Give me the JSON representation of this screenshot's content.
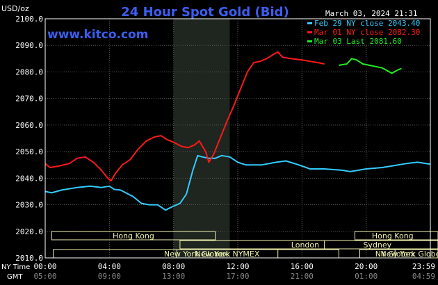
{
  "chart_data": {
    "type": "line",
    "title": "24 Hour Spot Gold (Bid)",
    "watermark": "www.kitco.com",
    "timestamp": "March 03, 2024 21:31",
    "ylabel": "USD/oz",
    "ylim": [
      2010,
      2100
    ],
    "yticks": [
      "2010.0",
      "2020.0",
      "2030.0",
      "2040.0",
      "2050.0",
      "2060.0",
      "2070.0",
      "2080.0",
      "2090.0",
      "2100.0"
    ],
    "xlim": [
      0,
      24
    ],
    "x_ticks": [
      0,
      4,
      8,
      12,
      16,
      20,
      23.983
    ],
    "ny_time_label": "NY Time",
    "gmt_label": "GMT",
    "ny_time_ticks": [
      "00:00",
      "04:00",
      "08:00",
      "12:00",
      "16:00",
      "20:00",
      "23:59"
    ],
    "gmt_ticks": [
      "05:00",
      "09:00",
      "13:00",
      "17:00",
      "21:00",
      "01:00",
      "04:59"
    ],
    "grid": true,
    "legend_position": "top-right",
    "colors": {
      "background": "#000000",
      "grid": "#5a5a5a",
      "axis": "#ffffff",
      "title": "#3c5ef0",
      "shade": "#1f251f",
      "session_box": "#f2f2b0"
    },
    "shaded_hours": [
      8,
      11.5
    ],
    "sessions": [
      {
        "label": "Hong Kong",
        "start": 0.4,
        "end": 10.6,
        "row": 0
      },
      {
        "label": "Hong Kong",
        "start": 19.3,
        "end": 24.6,
        "row": 0
      },
      {
        "label": "London",
        "start": 8.4,
        "end": 25.5,
        "row": 1
      },
      {
        "label": "Sydney",
        "start": 17.4,
        "end": 24.6,
        "row": 1
      },
      {
        "label": "New York Globex",
        "start": 0.5,
        "end": 18.3,
        "row": 2
      },
      {
        "label": "New York NYMEX",
        "start": 8.2,
        "end": 14.5,
        "row": 2
      },
      {
        "label": "NY Globex",
        "start": 19.6,
        "end": 24.5,
        "row": 2
      },
      {
        "label": "New York Globex",
        "start": 21.8,
        "end": 26.4,
        "row": 2
      }
    ],
    "series": [
      {
        "name": "Feb 29 NY close 2043.40",
        "color": "#33ccff",
        "points": [
          [
            0,
            2035
          ],
          [
            0.4,
            2034.5
          ],
          [
            1,
            2035.5
          ],
          [
            2,
            2036.5
          ],
          [
            2.8,
            2037
          ],
          [
            3.5,
            2036.5
          ],
          [
            4,
            2037
          ],
          [
            4.3,
            2035.8
          ],
          [
            4.7,
            2035.5
          ],
          [
            5.5,
            2033
          ],
          [
            6,
            2030.5
          ],
          [
            6.5,
            2030
          ],
          [
            7,
            2030
          ],
          [
            7.5,
            2028
          ],
          [
            8,
            2029.5
          ],
          [
            8.4,
            2030.5
          ],
          [
            8.8,
            2034
          ],
          [
            9.2,
            2043
          ],
          [
            9.5,
            2048.5
          ],
          [
            9.8,
            2048
          ],
          [
            10.2,
            2047.5
          ],
          [
            10.6,
            2047.5
          ],
          [
            11,
            2048.5
          ],
          [
            11.5,
            2048
          ],
          [
            12,
            2046
          ],
          [
            12.5,
            2045
          ],
          [
            13.5,
            2045
          ],
          [
            14.4,
            2046
          ],
          [
            15,
            2046.5
          ],
          [
            15.8,
            2045
          ],
          [
            16.5,
            2043.5
          ],
          [
            17.4,
            2043.5
          ],
          [
            18.5,
            2043
          ],
          [
            19,
            2042.5
          ],
          [
            20,
            2043.5
          ],
          [
            21,
            2044
          ],
          [
            21.8,
            2044.8
          ],
          [
            22.5,
            2045.5
          ],
          [
            23.2,
            2046
          ],
          [
            23.983,
            2045.3
          ]
        ]
      },
      {
        "name": "Mar 01 NY close 2082.30",
        "color": "#ff1a1a",
        "points": [
          [
            0,
            2045.5
          ],
          [
            0.3,
            2044
          ],
          [
            0.8,
            2044.5
          ],
          [
            1.5,
            2045.5
          ],
          [
            2,
            2047.5
          ],
          [
            2.5,
            2048
          ],
          [
            3,
            2046
          ],
          [
            3.5,
            2043
          ],
          [
            3.9,
            2040
          ],
          [
            4.1,
            2039
          ],
          [
            4.4,
            2042
          ],
          [
            4.8,
            2045
          ],
          [
            5.3,
            2047
          ],
          [
            5.8,
            2051
          ],
          [
            6.3,
            2054
          ],
          [
            6.8,
            2055.5
          ],
          [
            7.2,
            2056
          ],
          [
            7.6,
            2054.5
          ],
          [
            8,
            2053.5
          ],
          [
            8.5,
            2052
          ],
          [
            8.9,
            2051.5
          ],
          [
            9.3,
            2052.5
          ],
          [
            9.6,
            2054
          ],
          [
            10,
            2050
          ],
          [
            10.2,
            2046
          ],
          [
            10.5,
            2049
          ],
          [
            10.9,
            2055
          ],
          [
            11.3,
            2061
          ],
          [
            11.8,
            2068
          ],
          [
            12.2,
            2074
          ],
          [
            12.6,
            2080
          ],
          [
            13,
            2083.5
          ],
          [
            13.4,
            2084
          ],
          [
            13.8,
            2085
          ],
          [
            14.2,
            2086.5
          ],
          [
            14.5,
            2087.5
          ],
          [
            14.8,
            2085.5
          ],
          [
            15.3,
            2085
          ],
          [
            16,
            2084.5
          ],
          [
            16.5,
            2084
          ],
          [
            17,
            2083.5
          ],
          [
            17.4,
            2083
          ]
        ]
      },
      {
        "name": "Mar 03 Last 2081.60",
        "color": "#22ee22",
        "points": [
          [
            18.3,
            2082.5
          ],
          [
            18.8,
            2083
          ],
          [
            19.1,
            2085
          ],
          [
            19.4,
            2084.5
          ],
          [
            19.8,
            2083
          ],
          [
            20.2,
            2082.5
          ],
          [
            20.6,
            2082
          ],
          [
            21,
            2081.5
          ],
          [
            21.3,
            2080.5
          ],
          [
            21.6,
            2079.5
          ],
          [
            21.9,
            2080.5
          ],
          [
            22.2,
            2081.3
          ]
        ]
      }
    ]
  }
}
